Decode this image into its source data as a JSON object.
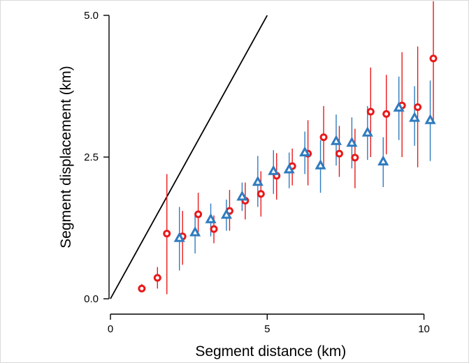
{
  "chart_data": {
    "type": "scatter",
    "title": "",
    "xlabel": "Segment distance (km)",
    "ylabel": "Segment displacement (km)",
    "xlim": [
      0,
      10.5
    ],
    "ylim": [
      0,
      5.0
    ],
    "x_ticks": [
      0,
      5,
      10
    ],
    "x_tick_labels": [
      "0",
      "5",
      "10"
    ],
    "y_ticks": [
      0.0,
      2.5,
      5.0
    ],
    "y_tick_labels": [
      "0.0",
      "2.5",
      "5.0"
    ],
    "grid": false,
    "reference_line": {
      "slope": 1,
      "intercept": 0,
      "color": "#000000"
    },
    "series": [
      {
        "marker": "circle",
        "color": "#e8191a",
        "points": [
          {
            "x": 1.0,
            "y": 0.18,
            "low": 0.12,
            "high": 0.26
          },
          {
            "x": 1.5,
            "y": 0.37,
            "low": 0.18,
            "high": 0.56
          },
          {
            "x": 1.8,
            "y": 1.15,
            "low": 0.08,
            "high": 2.2
          },
          {
            "x": 2.3,
            "y": 1.1,
            "low": 0.6,
            "high": 1.55
          },
          {
            "x": 2.8,
            "y": 1.49,
            "low": 1.1,
            "high": 1.87
          },
          {
            "x": 3.3,
            "y": 1.23,
            "low": 0.98,
            "high": 1.47
          },
          {
            "x": 3.8,
            "y": 1.55,
            "low": 1.2,
            "high": 1.92
          },
          {
            "x": 4.3,
            "y": 1.73,
            "low": 1.4,
            "high": 2.05
          },
          {
            "x": 4.8,
            "y": 1.85,
            "low": 1.45,
            "high": 2.25
          },
          {
            "x": 5.3,
            "y": 2.17,
            "low": 1.75,
            "high": 2.57
          },
          {
            "x": 5.8,
            "y": 2.34,
            "low": 2.0,
            "high": 2.65
          },
          {
            "x": 6.3,
            "y": 2.56,
            "low": 2.0,
            "high": 3.15
          },
          {
            "x": 6.8,
            "y": 2.85,
            "low": 2.3,
            "high": 3.4
          },
          {
            "x": 7.3,
            "y": 2.56,
            "low": 2.15,
            "high": 3.05
          },
          {
            "x": 7.8,
            "y": 2.49,
            "low": 1.95,
            "high": 3.0
          },
          {
            "x": 8.3,
            "y": 3.3,
            "low": 2.5,
            "high": 4.08
          },
          {
            "x": 8.8,
            "y": 3.26,
            "low": 2.55,
            "high": 3.95
          },
          {
            "x": 9.3,
            "y": 3.41,
            "low": 2.5,
            "high": 4.35
          },
          {
            "x": 9.8,
            "y": 3.38,
            "low": 2.32,
            "high": 4.45
          },
          {
            "x": 10.3,
            "y": 4.24,
            "low": 3.15,
            "high": 5.25
          }
        ]
      },
      {
        "marker": "triangle",
        "color": "#2f7bbf",
        "points": [
          {
            "x": 2.2,
            "y": 1.07,
            "low": 0.5,
            "high": 1.62
          },
          {
            "x": 2.7,
            "y": 1.17,
            "low": 0.8,
            "high": 1.5
          },
          {
            "x": 3.2,
            "y": 1.4,
            "low": 1.1,
            "high": 1.68
          },
          {
            "x": 3.7,
            "y": 1.48,
            "low": 1.2,
            "high": 1.75
          },
          {
            "x": 4.2,
            "y": 1.8,
            "low": 1.55,
            "high": 2.05
          },
          {
            "x": 4.7,
            "y": 2.06,
            "low": 1.62,
            "high": 2.52
          },
          {
            "x": 5.2,
            "y": 2.25,
            "low": 1.85,
            "high": 2.62
          },
          {
            "x": 5.7,
            "y": 2.28,
            "low": 1.95,
            "high": 2.58
          },
          {
            "x": 6.2,
            "y": 2.58,
            "low": 2.2,
            "high": 2.95
          },
          {
            "x": 6.7,
            "y": 2.35,
            "low": 1.87,
            "high": 2.8
          },
          {
            "x": 7.2,
            "y": 2.78,
            "low": 2.35,
            "high": 3.25
          },
          {
            "x": 7.7,
            "y": 2.75,
            "low": 2.3,
            "high": 3.2
          },
          {
            "x": 8.2,
            "y": 2.93,
            "low": 2.45,
            "high": 3.4
          },
          {
            "x": 8.7,
            "y": 2.42,
            "low": 1.97,
            "high": 2.85
          },
          {
            "x": 9.2,
            "y": 3.37,
            "low": 2.8,
            "high": 3.92
          },
          {
            "x": 9.7,
            "y": 3.19,
            "low": 2.7,
            "high": 3.75
          },
          {
            "x": 10.2,
            "y": 3.15,
            "low": 2.43,
            "high": 3.85
          }
        ]
      }
    ]
  }
}
